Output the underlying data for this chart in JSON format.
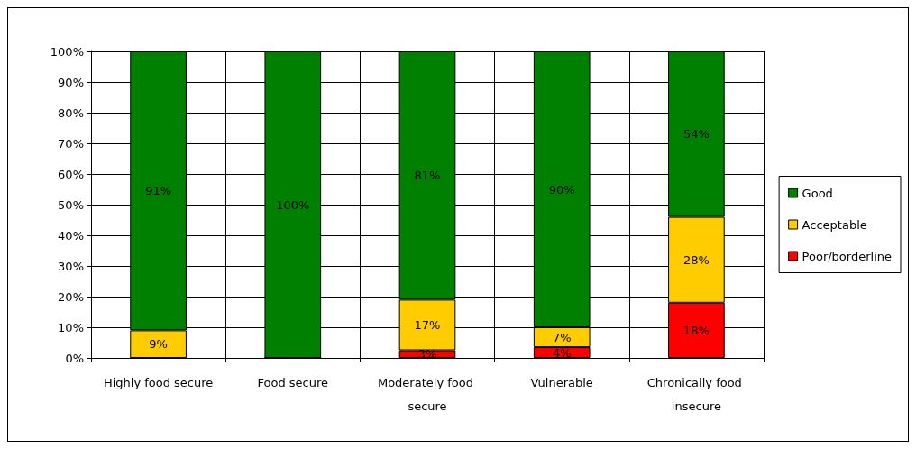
{
  "chart_data": {
    "type": "bar",
    "stacked": true,
    "categories": [
      "Highly food secure",
      "Food secure",
      "Moderately food secure",
      "Vulnerable",
      "Chronically food insecure"
    ],
    "series": [
      {
        "name": "Poor/borderline",
        "color": "#ff0000",
        "values": [
          0,
          0,
          2.5,
          3.5,
          18
        ],
        "value_labels": [
          null,
          null,
          "3%",
          "4%",
          "18%"
        ]
      },
      {
        "name": "Acceptable",
        "color": "#ffcc00",
        "values": [
          9,
          0,
          16.5,
          6.5,
          28
        ],
        "value_labels": [
          "9%",
          null,
          "17%",
          "7%",
          "28%"
        ]
      },
      {
        "name": "Good",
        "color": "#008000",
        "values": [
          91,
          100,
          81,
          90,
          54
        ],
        "value_labels": [
          "91%",
          "100%",
          "81%",
          "90%",
          "54%"
        ]
      }
    ],
    "ylim": [
      0,
      100
    ],
    "yticks": [
      {
        "value": 0,
        "label": "0%"
      },
      {
        "value": 10,
        "label": "10%"
      },
      {
        "value": 20,
        "label": "20%"
      },
      {
        "value": 30,
        "label": "30%"
      },
      {
        "value": 40,
        "label": "40%"
      },
      {
        "value": 50,
        "label": "50%"
      },
      {
        "value": 60,
        "label": "60%"
      },
      {
        "value": 70,
        "label": "70%"
      },
      {
        "value": 80,
        "label": "80%"
      },
      {
        "value": 90,
        "label": "90%"
      },
      {
        "value": 100,
        "label": "100%"
      }
    ],
    "grid": true,
    "legend": "right"
  }
}
